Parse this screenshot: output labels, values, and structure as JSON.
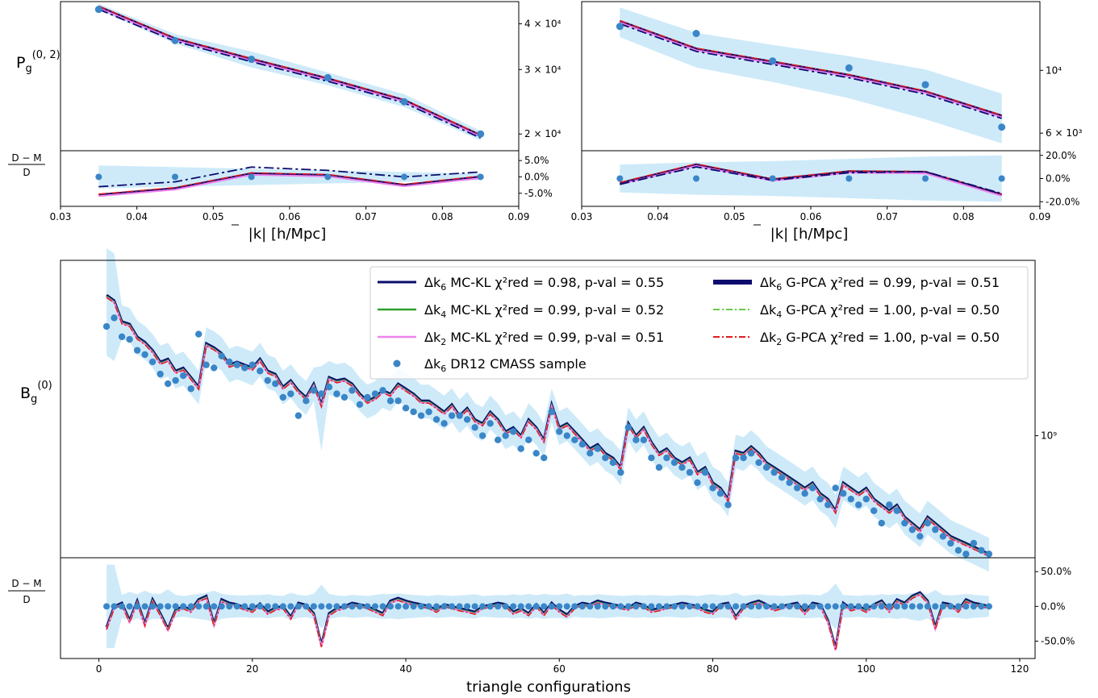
{
  "figure": {
    "left_ylabel": "P",
    "left_ylabel_sub": "g",
    "left_ylabel_sup": "(0, 2)",
    "bottom_ylabel": "B",
    "bottom_ylabel_sub": "g",
    "bottom_ylabel_sup": "(0)",
    "resid_label_num": "D − M",
    "resid_label_den": "D",
    "k_xlabel": "|k| [h/Mpc]",
    "tri_xlabel": "triangle configurations"
  },
  "legend": [
    {
      "prefix": "Δk",
      "sub": "6",
      "text": " MC-KL χ²red =  0.98, p-val  =  0.55",
      "color": "#0c0c6e",
      "style": "solid",
      "width": 3
    },
    {
      "prefix": "Δk",
      "sub": "4",
      "text": " MC-KL χ²red =  0.99, p-val  =  0.52",
      "color": "#2ca02c",
      "style": "solid",
      "width": 2.5
    },
    {
      "prefix": "Δk",
      "sub": "2",
      "text": " MC-KL χ²red =  0.99, p-val  =  0.51",
      "color": "#ee82ee",
      "style": "solid",
      "width": 2.5
    },
    {
      "prefix": "Δk",
      "sub": "6",
      "text": " DR12 CMASS sample",
      "color": "#3a86c8",
      "style": "dot",
      "width": 0
    },
    {
      "prefix": "Δk",
      "sub": "6",
      "text": " G-PCA χ²red =  0.99, p-val  =  0.51",
      "color": "#0c0c6e",
      "style": "solid",
      "width": 6
    },
    {
      "prefix": "Δk",
      "sub": "4",
      "text": " G-PCA χ²red =  1.00, p-val  =  0.50",
      "color": "#66cc44",
      "style": "dashdot",
      "width": 2
    },
    {
      "prefix": "Δk",
      "sub": "2",
      "text": " G-PCA χ²red =  1.00, p-val  =  0.50",
      "color": "#e31a1c",
      "style": "dashdot",
      "width": 2
    }
  ],
  "chart_data": [
    {
      "type": "line",
      "panel": "top-left",
      "x": [
        0.035,
        0.045,
        0.055,
        0.065,
        0.075,
        0.085
      ],
      "data_points": [
        43800,
        36000,
        32000,
        28500,
        24500,
        20000
      ],
      "model": [
        44500,
        36400,
        32000,
        28300,
        24700,
        19800
      ],
      "band_halfwidth_frac": [
        0.02,
        0.03,
        0.05,
        0.04,
        0.04,
        0.03
      ],
      "xlim": [
        0.03,
        0.09
      ],
      "ylim": [
        18000,
        46000
      ],
      "yscale": "log",
      "xticks": [
        "0.03",
        "0.04",
        "0.05",
        "0.06",
        "0.07",
        "0.08",
        "0.09"
      ],
      "yticks": [
        {
          "value": 40000,
          "label": "4 × 10⁴"
        },
        {
          "value": 30000,
          "label": "3 × 10⁴"
        },
        {
          "value": 20000,
          "label": "2 × 10⁴"
        }
      ],
      "residual": {
        "x": [
          0.035,
          0.045,
          0.055,
          0.065,
          0.075,
          0.085
        ],
        "solid": [
          -5.5,
          -3.5,
          1.0,
          0.5,
          -2.5,
          0.0
        ],
        "dashdot": [
          -3.0,
          -1.5,
          3.0,
          2.0,
          0.0,
          1.5
        ],
        "band": [
          3.5,
          3.0,
          2.5,
          2.0,
          1.5,
          1.0
        ],
        "ylim": [
          -9,
          8
        ],
        "yticks": [
          {
            "value": 5,
            "label": "5.0%"
          },
          {
            "value": 0,
            "label": "0.0%"
          },
          {
            "value": -5,
            "label": "-5.0%"
          }
        ]
      }
    },
    {
      "type": "line",
      "panel": "top-right",
      "x": [
        0.035,
        0.045,
        0.055,
        0.065,
        0.075,
        0.085
      ],
      "data_points": [
        14300,
        13500,
        10800,
        10200,
        8900,
        6300
      ],
      "model": [
        14900,
        11900,
        10700,
        9600,
        8400,
        6900
      ],
      "band_halfwidth_frac": [
        0.12,
        0.14,
        0.15,
        0.17,
        0.2,
        0.2
      ],
      "xlim": [
        0.03,
        0.09
      ],
      "ylim": [
        5200,
        17500
      ],
      "yscale": "log",
      "xticks": [
        "0.03",
        "0.04",
        "0.05",
        "0.06",
        "0.07",
        "0.08",
        "0.09"
      ],
      "yticks": [
        {
          "value": 10000,
          "label": "10⁴"
        },
        {
          "value": 6000,
          "label": "6 × 10³"
        }
      ],
      "residual": {
        "x": [
          0.035,
          0.045,
          0.055,
          0.065,
          0.075,
          0.085
        ],
        "solid": [
          -4.0,
          12.0,
          -1.0,
          6.0,
          5.5,
          -14.0
        ],
        "dashdot": [
          -5.0,
          10.0,
          -1.5,
          5.0,
          6.0,
          -13.0
        ],
        "band": [
          12,
          14,
          15,
          17,
          19,
          20
        ],
        "ylim": [
          -24,
          24
        ],
        "yticks": [
          {
            "value": 20,
            "label": "20.0%"
          },
          {
            "value": 0,
            "label": "0.0%"
          },
          {
            "value": -20,
            "label": "-20.0%"
          }
        ]
      }
    },
    {
      "type": "line",
      "panel": "bottom",
      "xlim": [
        -5,
        122
      ],
      "ylim": [
        0.56,
        2.3
      ],
      "yscale": "log",
      "yunits": "1e9",
      "xticks": [
        {
          "value": 0,
          "label": "0"
        },
        {
          "value": 20,
          "label": "20"
        },
        {
          "value": 40,
          "label": "40"
        },
        {
          "value": 60,
          "label": "60"
        },
        {
          "value": 80,
          "label": "80"
        },
        {
          "value": 100,
          "label": "100"
        },
        {
          "value": 120,
          "label": "120"
        }
      ],
      "yticks": [
        {
          "value": 1,
          "label": "10⁹"
        }
      ],
      "model_x_start": 1,
      "model": [
        1.95,
        1.9,
        1.72,
        1.7,
        1.6,
        1.56,
        1.5,
        1.42,
        1.44,
        1.36,
        1.38,
        1.32,
        1.26,
        1.55,
        1.52,
        1.48,
        1.4,
        1.42,
        1.4,
        1.38,
        1.44,
        1.36,
        1.34,
        1.26,
        1.3,
        1.24,
        1.2,
        1.28,
        1.16,
        1.32,
        1.3,
        1.31,
        1.28,
        1.22,
        1.18,
        1.2,
        1.24,
        1.22,
        1.28,
        1.25,
        1.22,
        1.18,
        1.18,
        1.15,
        1.12,
        1.16,
        1.1,
        1.14,
        1.08,
        1.06,
        1.12,
        1.08,
        1.02,
        1.04,
        1.0,
        1.08,
        1.04,
        0.98,
        1.16,
        1.04,
        1.06,
        1.02,
        0.98,
        0.94,
        0.96,
        0.92,
        0.9,
        0.86,
        1.06,
        1.0,
        1.04,
        0.97,
        0.92,
        0.94,
        0.9,
        0.88,
        0.9,
        0.84,
        0.86,
        0.8,
        0.78,
        0.74,
        0.93,
        0.92,
        0.95,
        0.92,
        0.88,
        0.86,
        0.84,
        0.82,
        0.8,
        0.78,
        0.8,
        0.76,
        0.74,
        0.7,
        0.8,
        0.78,
        0.76,
        0.78,
        0.74,
        0.72,
        0.7,
        0.72,
        0.68,
        0.66,
        0.64,
        0.68,
        0.66,
        0.64,
        0.62,
        0.61,
        0.6,
        0.59,
        0.58,
        0.57
      ],
      "data_points": [
        1.68,
        1.75,
        1.6,
        1.58,
        1.5,
        1.47,
        1.42,
        1.34,
        1.28,
        1.3,
        1.33,
        1.25,
        1.62,
        1.4,
        1.38,
        1.46,
        1.42,
        1.4,
        1.38,
        1.4,
        1.36,
        1.3,
        1.28,
        1.2,
        1.22,
        1.1,
        1.18,
        1.24,
        1.22,
        1.26,
        1.22,
        1.2,
        1.24,
        1.16,
        1.2,
        1.22,
        1.24,
        1.18,
        1.18,
        1.14,
        1.12,
        1.1,
        1.12,
        1.08,
        1.06,
        1.1,
        1.1,
        1.08,
        1.04,
        1.0,
        1.06,
        0.98,
        1.0,
        1.02,
        0.94,
        0.98,
        0.92,
        0.9,
        1.12,
        1.02,
        1.0,
        0.98,
        0.96,
        0.92,
        0.94,
        0.9,
        0.88,
        0.84,
        1.04,
        0.98,
        0.98,
        0.9,
        0.86,
        0.9,
        0.88,
        0.86,
        0.84,
        0.8,
        0.84,
        0.78,
        0.76,
        0.72,
        0.9,
        0.9,
        0.92,
        0.88,
        0.86,
        0.84,
        0.82,
        0.8,
        0.78,
        0.76,
        0.78,
        0.74,
        0.72,
        0.78,
        0.76,
        0.74,
        0.72,
        0.74,
        0.7,
        0.66,
        0.72,
        0.7,
        0.66,
        0.64,
        0.62,
        0.66,
        0.64,
        0.62,
        0.6,
        0.58,
        0.57,
        0.6,
        0.58,
        0.57
      ],
      "band_frac": 0.08,
      "residual": {
        "solid": [
          -30,
          0,
          5,
          -20,
          8,
          -25,
          10,
          -10,
          -32,
          -5,
          0,
          -5,
          10,
          15,
          -25,
          10,
          5,
          3,
          -2,
          -5,
          4,
          -8,
          -2,
          0,
          -15,
          5,
          2,
          -10,
          -55,
          -10,
          -3,
          0,
          5,
          3,
          0,
          -5,
          -10,
          8,
          12,
          8,
          5,
          3,
          0,
          -5,
          3,
          0,
          -3,
          -5,
          -8,
          0,
          2,
          5,
          3,
          -8,
          -3,
          -10,
          3,
          -10,
          5,
          -5,
          -12,
          0,
          5,
          3,
          8,
          5,
          3,
          0,
          -2,
          5,
          2,
          -5,
          -3,
          0,
          2,
          5,
          3,
          0,
          -5,
          -8,
          3,
          5,
          -15,
          0,
          5,
          8,
          3,
          -3,
          0,
          3,
          5,
          -8,
          5,
          3,
          -20,
          -60,
          5,
          -3,
          0,
          -5,
          3,
          8,
          -5,
          10,
          5,
          15,
          20,
          8,
          -30,
          5,
          3,
          -5,
          10,
          5,
          3,
          0
        ],
        "ylim": [
          -75,
          70
        ],
        "yticks": [
          {
            "value": 50,
            "label": "50.0%"
          },
          {
            "value": 0,
            "label": "0.0%"
          },
          {
            "value": -50,
            "label": "-50.0%"
          }
        ]
      }
    }
  ]
}
